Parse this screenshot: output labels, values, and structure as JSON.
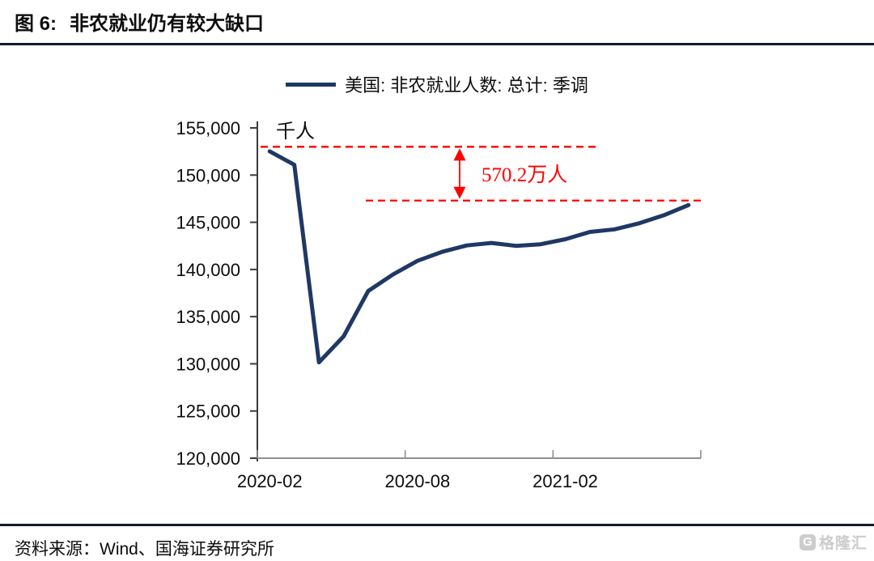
{
  "figure": {
    "label": "图 6:",
    "title": "非农就业仍有较大缺口"
  },
  "legend": {
    "series_label": "美国: 非农就业人数: 总计: 季调"
  },
  "chart_data": {
    "type": "line",
    "title": "非农就业仍有较大缺口",
    "series_name": "美国: 非农就业人数: 总计: 季调",
    "unit_label": "千人",
    "x": [
      "2020-02",
      "2020-03",
      "2020-04",
      "2020-05",
      "2020-06",
      "2020-07",
      "2020-08",
      "2020-09",
      "2020-10",
      "2020-11",
      "2020-12",
      "2021-01",
      "2021-02",
      "2021-03",
      "2021-04",
      "2021-05",
      "2021-06",
      "2021-07"
    ],
    "values": [
      152523,
      151090,
      130161,
      132912,
      137715,
      139454,
      140914,
      141865,
      142545,
      142809,
      142503,
      142669,
      143204,
      143980,
      144249,
      144894,
      145744,
      146821
    ],
    "ylim": [
      120000,
      156800
    ],
    "y_ticks": [
      120000,
      125000,
      130000,
      135000,
      140000,
      145000,
      150000,
      155000
    ],
    "x_ticks": [
      {
        "label": "2020-02",
        "index": 0
      },
      {
        "label": "2020-08",
        "index": 6
      },
      {
        "label": "2021-02",
        "index": 12
      }
    ],
    "grid": false,
    "legend_position": "top-center",
    "line_color": "#1f3864",
    "annotation": {
      "text": "570.2万人",
      "upper_level": 153000,
      "lower_level": 147300,
      "color": "#ff0000"
    }
  },
  "footer": {
    "source": "资料来源：Wind、国海证券研究所"
  },
  "watermark": {
    "logo_letter": "G",
    "text": "格隆汇"
  }
}
